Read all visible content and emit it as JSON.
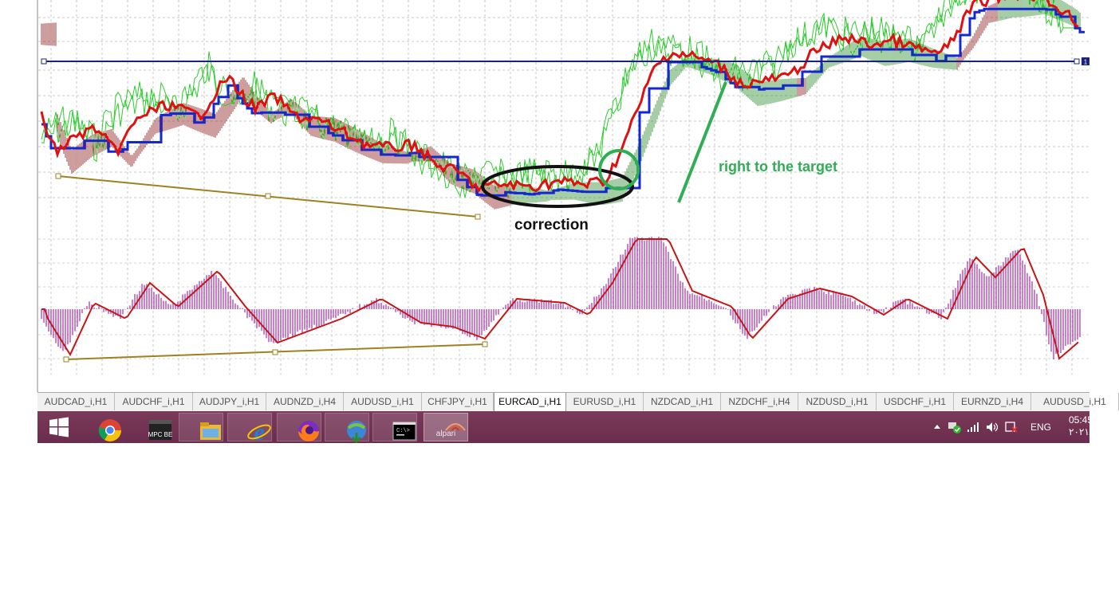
{
  "annotations": {
    "correction": "correction",
    "target": "right to the target"
  },
  "chart": {
    "h_line_label": "1",
    "colors": {
      "tenkan": "#e01010",
      "kijun": "#1428d0",
      "chikou": "#2ecc2e",
      "cloud_bull": "#2e8b2e",
      "cloud_bear": "#8b1a1a",
      "macd_hist": "#a01ea0",
      "macd_signal": "#c81414",
      "divergence": "#a08020",
      "h_line": "#1a237e",
      "annotation_green": "#2fae54"
    }
  },
  "tabs": [
    {
      "label": "AUDCAD_i,H1",
      "active": false
    },
    {
      "label": "AUDCHF_i,H1",
      "active": false
    },
    {
      "label": "AUDJPY_i,H1",
      "active": false
    },
    {
      "label": "AUDNZD_i,H4",
      "active": false
    },
    {
      "label": "AUDUSD_i,H1",
      "active": false
    },
    {
      "label": "CHFJPY_i,H1",
      "active": false
    },
    {
      "label": "EURCAD_i,H1",
      "active": true
    },
    {
      "label": "EURUSD_i,H1",
      "active": false
    },
    {
      "label": "NZDCAD_i,H1",
      "active": false
    },
    {
      "label": "NZDCHF_i,H4",
      "active": false
    },
    {
      "label": "NZDUSD_i,H1",
      "active": false
    },
    {
      "label": "USDCHF_i,H1",
      "active": false
    },
    {
      "label": "EURNZD_i,H4",
      "active": false
    },
    {
      "label": "AUDUSD_i,H1",
      "active": false
    }
  ],
  "taskbar": {
    "apps": [
      {
        "name": "chrome-icon"
      },
      {
        "name": "mpc-be-icon",
        "label": "MPC BE"
      },
      {
        "name": "file-explorer-icon"
      },
      {
        "name": "internet-explorer-icon"
      },
      {
        "name": "firefox-icon"
      },
      {
        "name": "internet-download-manager-icon"
      },
      {
        "name": "command-prompt-icon",
        "label": "C:\\>"
      },
      {
        "name": "alpari-icon",
        "label": "alpari"
      }
    ],
    "tray": {
      "language": "ENG",
      "time": "05:45",
      "date": "۲۰۲۱/"
    }
  }
}
